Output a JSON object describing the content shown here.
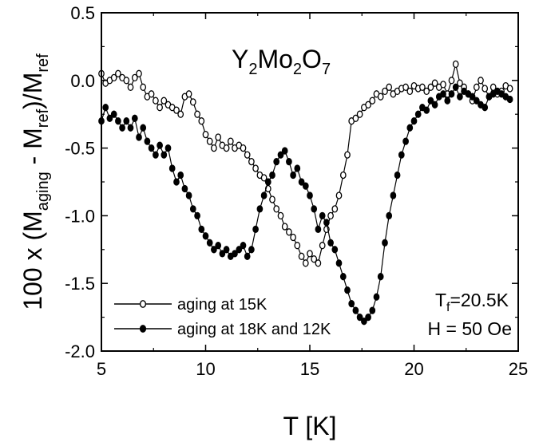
{
  "chart_data": {
    "type": "line",
    "title": {
      "main": "Y",
      "subs": [
        [
          "2",
          "Mo"
        ],
        [
          "2",
          "O"
        ],
        [
          "7",
          ""
        ]
      ]
    },
    "xlabel": "T [K]",
    "ylabel": {
      "prefix": "100 x (M",
      "sub1": "aging",
      "mid": " - M",
      "sub2": "ref",
      "mid2": ")/M",
      "sub3": "ref"
    },
    "xlim": [
      5,
      25
    ],
    "ylim": [
      -2.0,
      0.5
    ],
    "xticks": [
      5,
      10,
      15,
      20,
      25
    ],
    "yticks": [
      -2.0,
      -1.5,
      -1.0,
      -0.5,
      0.0,
      0.5
    ],
    "xtick_labels": [
      "5",
      "10",
      "15",
      "20",
      "25"
    ],
    "ytick_labels": [
      "-2.0",
      "-1.5",
      "-1.0",
      "-0.5",
      "0.0",
      "0.5"
    ],
    "grid": false,
    "legend_position": "bottom-left",
    "annotations": {
      "tf": {
        "main": "T",
        "sub": "f",
        "rest": "=20.5K"
      },
      "field": "H = 50 Oe"
    },
    "series": [
      {
        "name": "aging at 15K",
        "marker": "open-circle",
        "x": [
          5.0,
          5.2,
          5.4,
          5.6,
          5.8,
          6.0,
          6.2,
          6.4,
          6.6,
          6.8,
          7.0,
          7.2,
          7.4,
          7.6,
          7.8,
          8.0,
          8.2,
          8.4,
          8.6,
          8.8,
          9.0,
          9.2,
          9.4,
          9.6,
          9.8,
          10.0,
          10.2,
          10.4,
          10.6,
          10.8,
          11.0,
          11.2,
          11.4,
          11.6,
          11.8,
          12.0,
          12.2,
          12.4,
          12.6,
          12.8,
          13.0,
          13.2,
          13.4,
          13.6,
          13.8,
          14.0,
          14.2,
          14.4,
          14.6,
          14.8,
          15.0,
          15.2,
          15.4,
          15.6,
          15.8,
          16.0,
          16.2,
          16.4,
          16.6,
          16.8,
          17.0,
          17.2,
          17.4,
          17.6,
          17.8,
          18.0,
          18.2,
          18.4,
          18.6,
          18.8,
          19.0,
          19.2,
          19.4,
          19.6,
          19.8,
          20.0,
          20.2,
          20.4,
          20.6,
          20.8,
          21.0,
          21.2,
          21.4,
          21.6,
          21.8,
          22.0,
          22.2,
          22.4,
          22.6,
          22.8,
          23.0,
          23.2,
          23.4,
          23.6,
          23.8,
          24.0,
          24.2,
          24.4,
          24.6
        ],
        "values": [
          0.05,
          -0.02,
          0.0,
          0.02,
          0.05,
          0.02,
          0.0,
          -0.05,
          0.02,
          0.05,
          -0.05,
          -0.12,
          -0.1,
          -0.15,
          -0.2,
          -0.15,
          -0.18,
          -0.2,
          -0.22,
          -0.25,
          -0.12,
          -0.1,
          -0.16,
          -0.25,
          -0.3,
          -0.4,
          -0.45,
          -0.5,
          -0.42,
          -0.48,
          -0.5,
          -0.45,
          -0.5,
          -0.48,
          -0.5,
          -0.55,
          -0.6,
          -0.65,
          -0.7,
          -0.72,
          -0.8,
          -0.88,
          -0.95,
          -1.0,
          -1.08,
          -1.12,
          -1.16,
          -1.22,
          -1.3,
          -1.35,
          -1.28,
          -1.32,
          -1.35,
          -1.22,
          -1.1,
          -1.0,
          -0.95,
          -0.85,
          -0.7,
          -0.55,
          -0.3,
          -0.28,
          -0.25,
          -0.2,
          -0.18,
          -0.15,
          -0.1,
          -0.12,
          -0.08,
          -0.05,
          -0.1,
          -0.08,
          -0.06,
          -0.05,
          -0.08,
          -0.04,
          -0.06,
          -0.05,
          -0.08,
          -0.05,
          -0.02,
          -0.05,
          -0.03,
          -0.1,
          0.0,
          0.12,
          -0.02,
          -0.05,
          -0.1,
          -0.15,
          -0.05,
          0.0,
          -0.06,
          -0.12,
          -0.05,
          -0.1,
          -0.08,
          -0.04,
          -0.06
        ]
      },
      {
        "name": "aging at 18K and 12K",
        "marker": "filled-circle",
        "x": [
          5.0,
          5.2,
          5.4,
          5.6,
          5.8,
          6.0,
          6.2,
          6.4,
          6.6,
          6.8,
          7.0,
          7.2,
          7.4,
          7.6,
          7.8,
          8.0,
          8.2,
          8.4,
          8.6,
          8.8,
          9.0,
          9.2,
          9.4,
          9.6,
          9.8,
          10.0,
          10.2,
          10.4,
          10.6,
          10.8,
          11.0,
          11.2,
          11.4,
          11.6,
          11.8,
          12.0,
          12.2,
          12.4,
          12.6,
          12.8,
          13.0,
          13.2,
          13.4,
          13.6,
          13.8,
          14.0,
          14.2,
          14.4,
          14.6,
          14.8,
          15.0,
          15.2,
          15.4,
          15.6,
          15.8,
          16.0,
          16.2,
          16.4,
          16.6,
          16.8,
          17.0,
          17.2,
          17.4,
          17.6,
          17.8,
          18.0,
          18.2,
          18.4,
          18.6,
          18.8,
          19.0,
          19.2,
          19.4,
          19.6,
          19.8,
          20.0,
          20.2,
          20.4,
          20.6,
          20.8,
          21.0,
          21.2,
          21.4,
          21.6,
          21.8,
          22.0,
          22.2,
          22.4,
          22.6,
          22.8,
          23.0,
          23.2,
          23.4,
          23.6,
          23.8,
          24.0,
          24.2,
          24.4,
          24.6
        ],
        "values": [
          -0.3,
          -0.2,
          -0.28,
          -0.25,
          -0.3,
          -0.35,
          -0.3,
          -0.35,
          -0.28,
          -0.42,
          -0.35,
          -0.45,
          -0.5,
          -0.55,
          -0.48,
          -0.55,
          -0.5,
          -0.65,
          -0.75,
          -0.7,
          -0.8,
          -0.85,
          -0.95,
          -1.0,
          -1.1,
          -1.15,
          -1.2,
          -1.25,
          -1.22,
          -1.28,
          -1.25,
          -1.3,
          -1.28,
          -1.25,
          -1.22,
          -1.3,
          -1.25,
          -1.1,
          -0.95,
          -0.85,
          -0.75,
          -0.7,
          -0.6,
          -0.55,
          -0.52,
          -0.6,
          -0.7,
          -0.65,
          -0.75,
          -0.78,
          -0.85,
          -0.95,
          -1.1,
          -1.0,
          -1.05,
          -1.2,
          -1.25,
          -1.35,
          -1.45,
          -1.55,
          -1.65,
          -1.7,
          -1.75,
          -1.78,
          -1.75,
          -1.7,
          -1.6,
          -1.45,
          -1.2,
          -1.0,
          -0.85,
          -0.7,
          -0.55,
          -0.45,
          -0.35,
          -0.3,
          -0.25,
          -0.2,
          -0.22,
          -0.15,
          -0.18,
          -0.12,
          -0.1,
          -0.15,
          -0.1,
          -0.05,
          -0.12,
          -0.08,
          -0.1,
          -0.12,
          -0.15,
          -0.18,
          -0.2,
          -0.12,
          -0.1,
          -0.08,
          -0.1,
          -0.12,
          -0.14
        ]
      }
    ]
  }
}
